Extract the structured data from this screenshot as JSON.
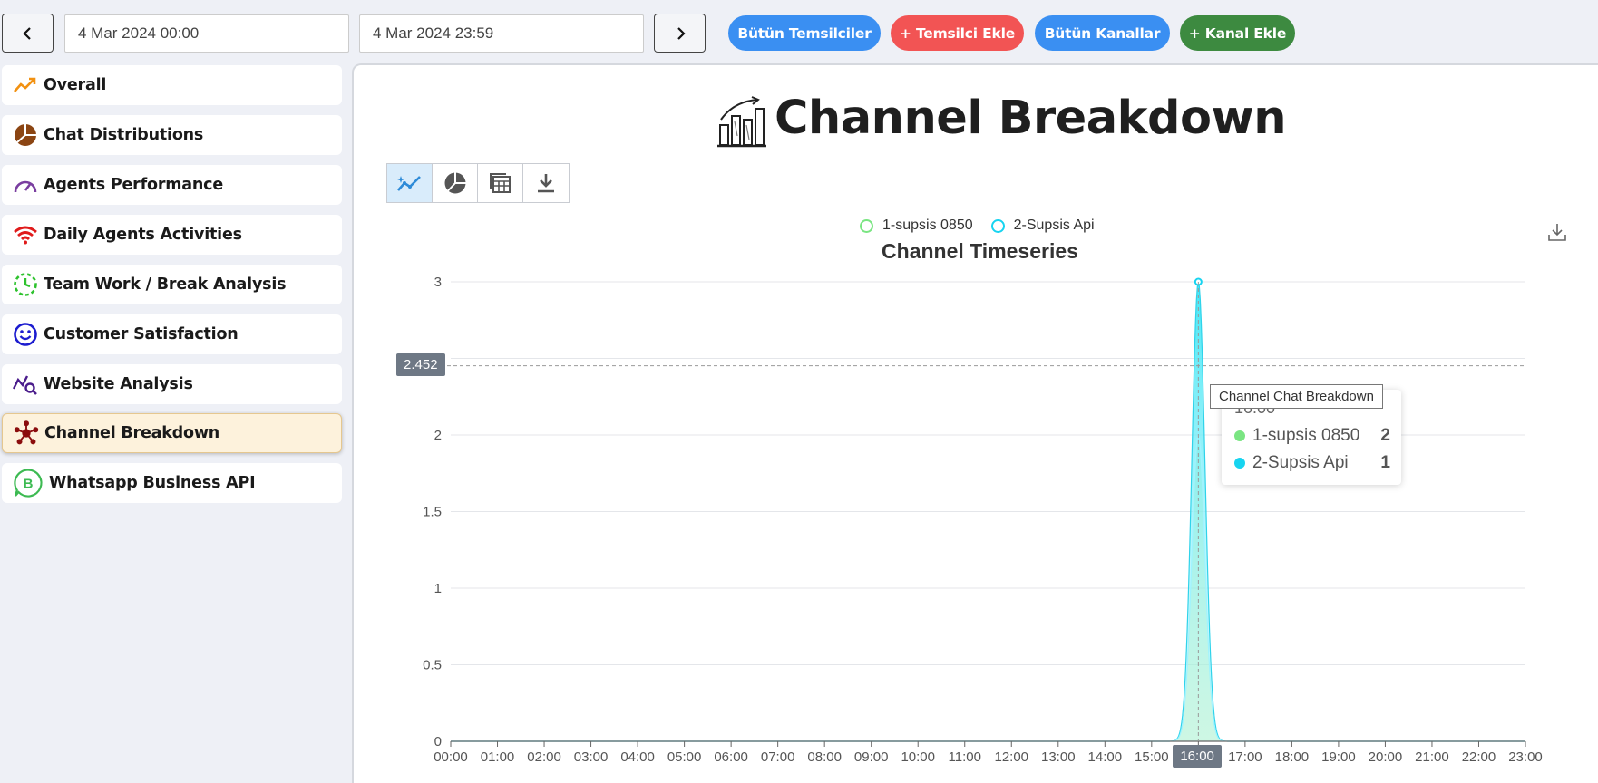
{
  "topbar": {
    "start_date": "4 Mar 2024 00:00",
    "end_date": "4 Mar 2024 23:59",
    "buttons": [
      {
        "label": "Bütün Temsilciler",
        "color": "#3a8ff2"
      },
      {
        "label": "+ Temsilci Ekle",
        "color": "#f25454"
      },
      {
        "label": "Bütün Kanallar",
        "color": "#3a8ff2"
      },
      {
        "label": "+ Kanal Ekle",
        "color": "#3d8a40"
      }
    ]
  },
  "sidebar": {
    "items": [
      {
        "label": "Overall",
        "icon": "trend-up-icon"
      },
      {
        "label": "Chat Distributions",
        "icon": "pie-icon"
      },
      {
        "label": "Agents Performance",
        "icon": "speedometer-icon"
      },
      {
        "label": "Daily Agents Activities",
        "icon": "wifi-icon"
      },
      {
        "label": "Team Work / Break Analysis",
        "icon": "timer-icon"
      },
      {
        "label": "Customer Satisfaction",
        "icon": "smile-icon"
      },
      {
        "label": "Website Analysis",
        "icon": "chart-search-icon"
      },
      {
        "label": "Channel Breakdown",
        "icon": "network-icon",
        "active": true
      },
      {
        "label": "Whatsapp Business API",
        "icon": "whatsapp-business-icon"
      }
    ]
  },
  "main": {
    "title": "Channel Breakdown",
    "tooltip_tag": "Channel Chat Breakdown",
    "crosshair_y_label": "2.452",
    "crosshair_x_label": "16:00",
    "tooltip": {
      "time": "16:00",
      "rows": [
        {
          "name": "1-supsis 0850",
          "value": "2",
          "color": "#7ae582"
        },
        {
          "name": "2-Supsis Api",
          "value": "1",
          "color": "#17d4f0"
        }
      ]
    }
  },
  "chart_data": {
    "type": "area",
    "title": "Channel Timeseries",
    "x": [
      "00:00",
      "01:00",
      "02:00",
      "03:00",
      "04:00",
      "05:00",
      "06:00",
      "07:00",
      "08:00",
      "09:00",
      "10:00",
      "11:00",
      "12:00",
      "13:00",
      "14:00",
      "15:00",
      "16:00",
      "17:00",
      "18:00",
      "19:00",
      "20:00",
      "21:00",
      "22:00",
      "23:00"
    ],
    "ylim": [
      0,
      3
    ],
    "yticks": [
      "0",
      "0.5",
      "1",
      "1.5",
      "2",
      "2.5",
      "3"
    ],
    "stacked": true,
    "series": [
      {
        "name": "1-supsis 0850",
        "color": "#7ae582",
        "values": [
          0,
          0,
          0,
          0,
          0,
          0,
          0,
          0,
          0,
          0,
          0,
          0,
          0,
          0,
          0,
          0,
          2,
          0,
          0,
          0,
          0,
          0,
          0,
          0
        ]
      },
      {
        "name": "2-Supsis Api",
        "color": "#17d4f0",
        "values": [
          0,
          0,
          0,
          0,
          0,
          0,
          0,
          0,
          0,
          0,
          0,
          0,
          0,
          0,
          0,
          0,
          1,
          0,
          0,
          0,
          0,
          0,
          0,
          0
        ]
      }
    ],
    "legend": "top-center",
    "grid": true
  }
}
